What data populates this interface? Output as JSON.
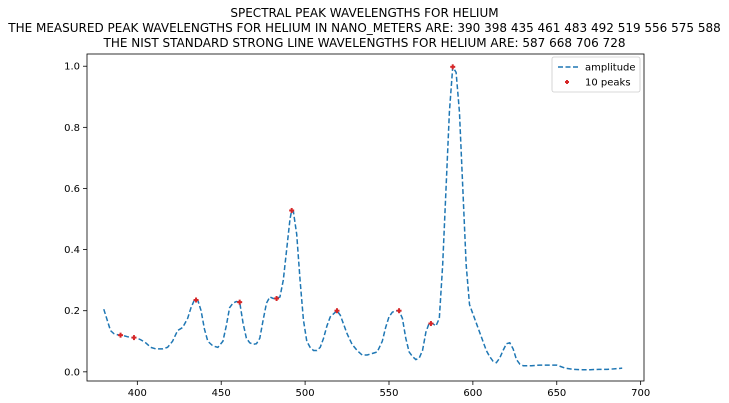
{
  "chart_data": {
    "type": "line",
    "title": "SPECTRAL PEAK WAVELENGTHS FOR HELIUM",
    "subtitle_lines": [
      "THE MEASURED PEAK WAVELENGTHS FOR HELIUM IN NANO_METERS ARE: 390 398 435 461 483 492 519 556 575 588",
      "THE NIST STANDARD STRONG LINE WAVELENGTHS FOR HELIUM ARE: 587 668 706 728"
    ],
    "xlabel": "",
    "ylabel": "",
    "xlim": [
      370,
      702
    ],
    "ylim": [
      -0.03,
      1.04
    ],
    "xticks": [
      400,
      450,
      500,
      550,
      600,
      650,
      700
    ],
    "yticks": [
      0.0,
      0.2,
      0.4,
      0.6,
      0.8,
      1.0
    ],
    "xtick_labels": [
      "400",
      "450",
      "500",
      "550",
      "600",
      "650",
      "700"
    ],
    "ytick_labels": [
      "0.0",
      "0.2",
      "0.4",
      "0.6",
      "0.8",
      "1.0"
    ],
    "grid": false,
    "legend_position": "top-right",
    "series": [
      {
        "name": "amplitude",
        "style": "dashed-line",
        "color": "#1f77b4",
        "x": [
          380,
          382,
          384,
          386,
          389,
          391,
          394,
          397,
          399,
          402,
          405,
          408,
          411,
          415,
          418,
          421,
          424,
          427,
          430,
          432,
          434,
          436,
          438,
          440,
          442,
          445,
          448,
          451,
          453,
          455,
          457,
          459,
          461,
          463,
          465,
          467,
          469,
          471,
          473,
          475,
          477,
          479,
          481,
          483,
          485,
          487,
          489,
          491,
          492,
          493,
          495,
          497,
          499,
          501,
          503,
          505,
          507,
          509,
          511,
          513,
          515,
          517,
          519,
          521,
          523,
          525,
          528,
          531,
          534,
          537,
          540,
          543,
          546,
          548,
          550,
          552,
          554,
          556,
          558,
          560,
          562,
          564,
          566,
          568,
          570,
          572,
          574,
          576,
          578,
          580,
          582,
          584,
          586,
          588,
          590,
          592,
          594,
          596,
          598,
          600,
          602,
          604,
          606,
          608,
          610,
          612,
          614,
          616,
          618,
          620,
          622,
          624,
          626,
          628,
          630,
          635,
          640,
          645,
          650,
          655,
          660,
          665,
          670,
          675,
          680,
          685,
          689
        ],
        "y": [
          0.205,
          0.17,
          0.135,
          0.125,
          0.12,
          0.12,
          0.115,
          0.112,
          0.112,
          0.105,
          0.095,
          0.08,
          0.075,
          0.075,
          0.08,
          0.1,
          0.135,
          0.145,
          0.175,
          0.21,
          0.235,
          0.235,
          0.2,
          0.14,
          0.1,
          0.085,
          0.08,
          0.1,
          0.15,
          0.21,
          0.225,
          0.23,
          0.228,
          0.16,
          0.11,
          0.095,
          0.09,
          0.092,
          0.11,
          0.17,
          0.225,
          0.245,
          0.24,
          0.24,
          0.245,
          0.3,
          0.4,
          0.5,
          0.528,
          0.525,
          0.45,
          0.3,
          0.17,
          0.1,
          0.08,
          0.07,
          0.07,
          0.08,
          0.11,
          0.15,
          0.18,
          0.19,
          0.2,
          0.185,
          0.155,
          0.125,
          0.09,
          0.07,
          0.055,
          0.055,
          0.06,
          0.065,
          0.1,
          0.145,
          0.18,
          0.195,
          0.2,
          0.2,
          0.175,
          0.11,
          0.065,
          0.05,
          0.04,
          0.045,
          0.07,
          0.13,
          0.16,
          0.158,
          0.15,
          0.175,
          0.35,
          0.6,
          0.85,
          0.998,
          0.98,
          0.85,
          0.6,
          0.35,
          0.22,
          0.19,
          0.16,
          0.13,
          0.1,
          0.07,
          0.05,
          0.035,
          0.03,
          0.045,
          0.07,
          0.092,
          0.095,
          0.075,
          0.04,
          0.025,
          0.02,
          0.02,
          0.022,
          0.022,
          0.022,
          0.012,
          0.008,
          0.007,
          0.007,
          0.008,
          0.008,
          0.01,
          0.012
        ]
      },
      {
        "name": "10 peaks",
        "style": "plus-markers",
        "color": "#d62728",
        "x": [
          390,
          398,
          435,
          461,
          483,
          492,
          519,
          556,
          575,
          588
        ],
        "y": [
          0.12,
          0.112,
          0.235,
          0.228,
          0.24,
          0.528,
          0.2,
          0.2,
          0.158,
          0.998
        ]
      }
    ]
  }
}
